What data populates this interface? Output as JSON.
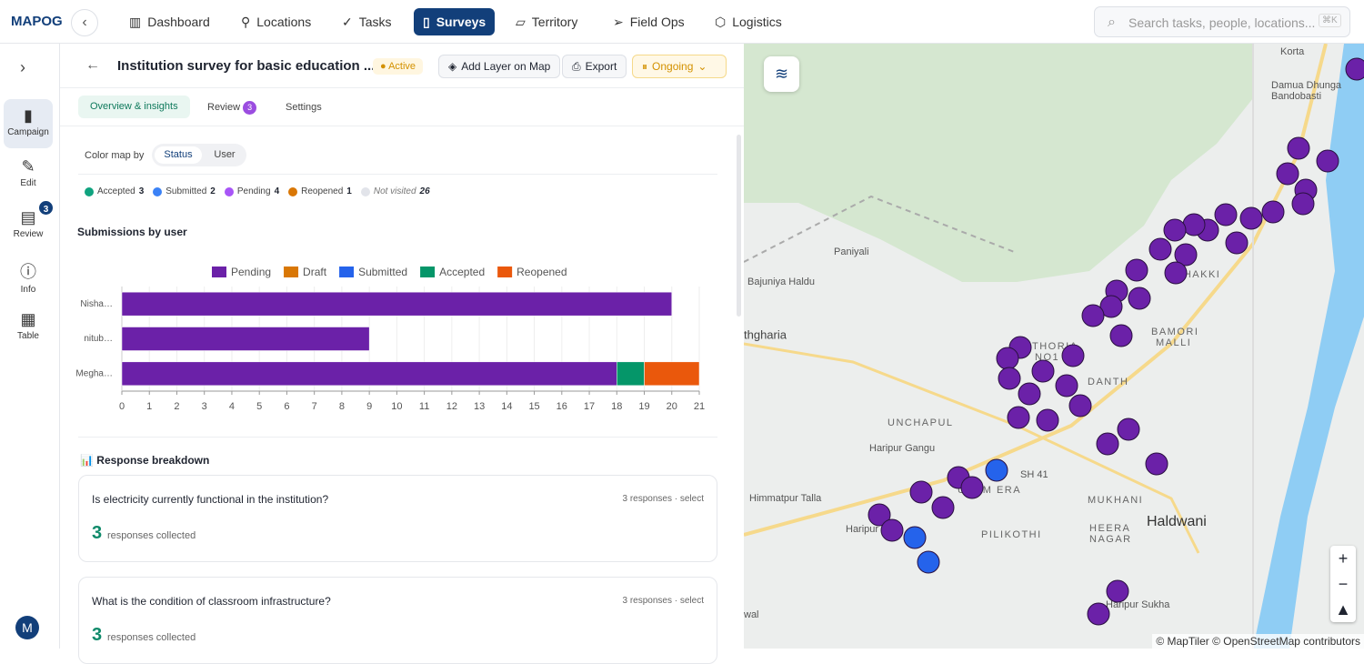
{
  "logo": "MAPOG",
  "nav": [
    "Dashboard",
    "Locations",
    "Tasks",
    "Surveys",
    "Territory",
    "Field Ops",
    "Logistics"
  ],
  "active_nav": 3,
  "search": {
    "placeholder": "Search tasks, people, locations...",
    "shortcut": "⌘K"
  },
  "sidebar": {
    "items": [
      {
        "label": "Campaign"
      },
      {
        "label": "Edit"
      },
      {
        "label": "Review",
        "badge": 3
      },
      {
        "label": "Info"
      },
      {
        "label": "Table"
      }
    ],
    "user_initial": "M"
  },
  "survey": {
    "title": "Institution survey for basic education ...",
    "status": "Active",
    "actions": [
      "Add Layer on Map",
      "Export"
    ],
    "state": "Ongoing"
  },
  "tabs": [
    {
      "label": "Overview & insights"
    },
    {
      "label": "Review",
      "badge": 3
    },
    {
      "label": "Settings"
    }
  ],
  "color_map": {
    "label": "Color map by",
    "options": [
      "Status",
      "User"
    ]
  },
  "status_legend": [
    {
      "name": "Accepted",
      "count": 3,
      "color": "#10a37f"
    },
    {
      "name": "Submitted",
      "count": 2,
      "color": "#3b82f6"
    },
    {
      "name": "Pending",
      "count": 4,
      "color": "#a855f7"
    },
    {
      "name": "Reopened",
      "count": 1,
      "color": "#d97706"
    },
    {
      "name": "Not visited",
      "count": 26,
      "color": "#e2e4ea"
    }
  ],
  "chart_data": {
    "type": "bar",
    "orientation": "horizontal",
    "stacked": true,
    "title": "Submissions by user",
    "categories": [
      "Nisha…",
      "nitub…",
      "Megha…"
    ],
    "series": [
      {
        "name": "Pending",
        "color": "#6b21a8",
        "values": [
          20,
          9,
          18
        ]
      },
      {
        "name": "Draft",
        "color": "#d97706",
        "values": [
          0,
          0,
          0
        ]
      },
      {
        "name": "Submitted",
        "color": "#2563eb",
        "values": [
          0,
          0,
          0
        ]
      },
      {
        "name": "Accepted",
        "color": "#059669",
        "values": [
          0,
          0,
          1
        ]
      },
      {
        "name": "Reopened",
        "color": "#ea580c",
        "values": [
          0,
          0,
          2
        ]
      }
    ],
    "xlim": [
      0,
      21
    ],
    "xticks": [
      0,
      1,
      2,
      3,
      4,
      5,
      6,
      7,
      8,
      9,
      10,
      11,
      12,
      13,
      14,
      15,
      16,
      17,
      18,
      19,
      20,
      21
    ],
    "grid": true,
    "legend": "top"
  },
  "breakdown": {
    "title": "Response breakdown",
    "questions": [
      {
        "question": "Is electricity currently functional in the institution?",
        "meta": "3 responses · select",
        "count": 3,
        "count_label": "responses collected"
      },
      {
        "question": "What is the condition of classroom infrastructure?",
        "meta": "3 responses · select",
        "count": 3,
        "count_label": "responses collected"
      }
    ]
  },
  "map": {
    "labels": [
      "Korta",
      "Damua Dhunga",
      "Bandobasti",
      "Paniyali",
      "Bajuniya Haldu",
      "thgharia",
      "PAHAKKI",
      "BAMORI",
      "MALLI",
      "THORIA",
      "NO1",
      "DANTH",
      "UNCHAPUL",
      "Haripur Gangu",
      "SH 41",
      "Himmatpur Talla",
      "USUM ERA",
      "MUKHANI",
      "PILIKOTHI",
      "HEERA",
      "NAGAR",
      "Haldwani",
      "Haripur",
      "Haripur Sukha",
      "wal"
    ],
    "attribution": "© MapTiler © OpenStreetMap contributors"
  }
}
